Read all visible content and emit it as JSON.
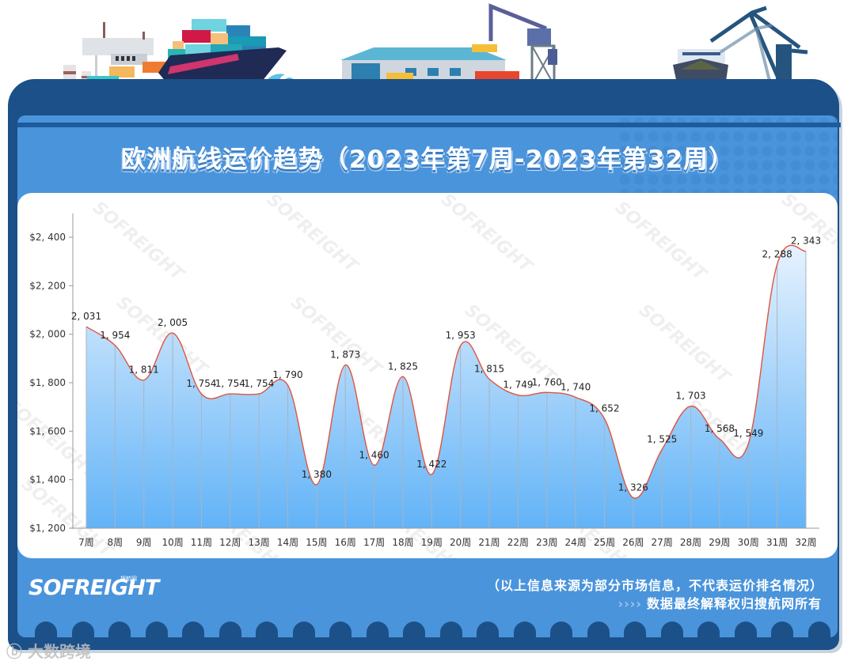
{
  "header": {
    "title": "欧洲航线运价趋势（2023年第7周-2023年第32周）"
  },
  "chart_data": {
    "type": "area",
    "title": "欧洲航线运价趋势（2023年第7周-2023年第32周）",
    "xlabel": "",
    "ylabel": "",
    "categories": [
      "7周",
      "8周",
      "9周",
      "10周",
      "11周",
      "12周",
      "13周",
      "14周",
      "15周",
      "16周",
      "17周",
      "18周",
      "19周",
      "20周",
      "21周",
      "22周",
      "23周",
      "24周",
      "25周",
      "26周",
      "27周",
      "28周",
      "29周",
      "30周",
      "31周",
      "32周"
    ],
    "series": [
      {
        "name": "欧洲航线运价",
        "values": [
          2031,
          1954,
          1811,
          2005,
          1754,
          1754,
          1754,
          1790,
          1380,
          1873,
          1460,
          1825,
          1422,
          1953,
          1815,
          1749,
          1760,
          1740,
          1652,
          1326,
          1525,
          1703,
          1568,
          1549,
          2288,
          2343
        ]
      }
    ],
    "data_labels": [
      "2,031",
      "1,954",
      "1,811",
      "2,005",
      "1,754",
      "1,754",
      "1,754",
      "1,790",
      "1,380",
      "1,873",
      "1,460",
      "1,825",
      "1,422",
      "1,953",
      "1,815",
      "1,749",
      "1,760",
      "1,740",
      "1,652",
      "1,326",
      "1,525",
      "1,703",
      "1,568",
      "1,549",
      "2,288",
      "2,343"
    ],
    "yticks": [
      "$1,200",
      "$1,400",
      "$1,600",
      "$1,800",
      "$2,000",
      "$2,200",
      "$2,400"
    ],
    "ylim": [
      1200,
      2500
    ],
    "grid": false,
    "legend": "none",
    "colors": {
      "line": "#e0533f",
      "fill_top": "#e3f0fd",
      "fill_bottom": "#63b4f7"
    }
  },
  "footer": {
    "logo": "SOFREIGHT",
    "logo_sub": "搜航网",
    "note_source": "（以上信息来源为部分市场信息，不代表运价排名情况）",
    "note_rights_arrows": "››››",
    "note_rights": "数据最终解释权归搜航网所有",
    "watermark": "大数跨境"
  },
  "watermark_text": "SOFREIGHT"
}
